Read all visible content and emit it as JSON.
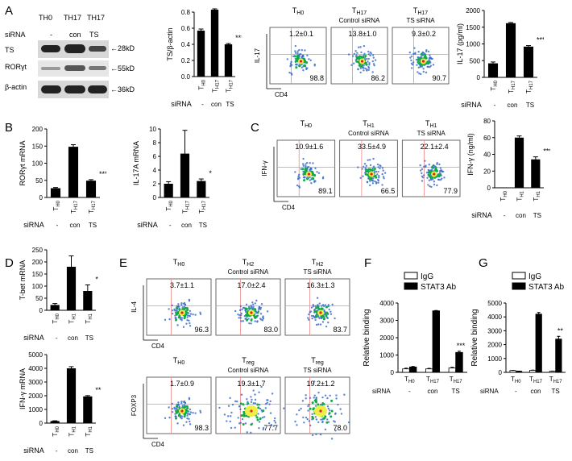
{
  "panels": {
    "A": "A",
    "B": "B",
    "C": "C",
    "D": "D",
    "E": "E",
    "F": "F",
    "G": "G"
  },
  "western": {
    "lanes": [
      "TH0",
      "TH17",
      "TH17"
    ],
    "sirna_label": "siRNA",
    "sirna": [
      "-",
      "con",
      "TS"
    ],
    "rows": [
      {
        "name": "TS",
        "size": "28kD"
      },
      {
        "name": "RORγt",
        "size": "55kD"
      },
      {
        "name": "β-actin",
        "size": "36kD"
      }
    ]
  },
  "common": {
    "siRNA_label": "siRNA",
    "siRNA_values": [
      "-",
      "con",
      "TS"
    ],
    "cat_th0": "TH0",
    "cat_th17": "TH17",
    "cat_th1": "TH1"
  },
  "chart_data": [
    {
      "id": "ts_actin",
      "type": "bar",
      "title": "",
      "ylabel": "TS/β-actin",
      "ylim": [
        0,
        0.8
      ],
      "yticks": [
        "0.0",
        "0.2",
        "0.4",
        "0.6",
        "0.8"
      ],
      "categories": [
        "TH0",
        "TH17",
        "TH17"
      ],
      "values": [
        0.57,
        0.83,
        0.4
      ],
      "errors": [
        0.02,
        0.01,
        0.01
      ],
      "annotation": "***"
    },
    {
      "id": "il17_protein",
      "type": "bar",
      "ylabel": "IL-17 (pg/ml)",
      "ylim": [
        0,
        2000
      ],
      "yticks": [
        "0",
        "500",
        "1000",
        "1500",
        "2000"
      ],
      "categories": [
        "TH0",
        "TH17",
        "TH17"
      ],
      "values": [
        420,
        1620,
        920
      ],
      "errors": [
        40,
        20,
        30
      ],
      "annotation": "***"
    },
    {
      "id": "rorgt_mrna",
      "type": "bar",
      "ylabel": "RORγt mRNA",
      "ylim": [
        0,
        200
      ],
      "yticks": [
        "0",
        "50",
        "100",
        "150",
        "200"
      ],
      "categories": [
        "TH0",
        "TH17",
        "TH17"
      ],
      "values": [
        27,
        148,
        49
      ],
      "errors": [
        2,
        6,
        3
      ],
      "annotation": "***"
    },
    {
      "id": "il17a_mrna",
      "type": "bar",
      "ylabel": "IL-17A mRNA",
      "ylim": [
        0,
        10
      ],
      "yticks": [
        "0",
        "2",
        "4",
        "6",
        "8",
        "10"
      ],
      "categories": [
        "TH0",
        "TH17",
        "TH17"
      ],
      "values": [
        2.0,
        6.4,
        2.4
      ],
      "errors": [
        0.3,
        3.4,
        0.3
      ],
      "annotation": "*"
    },
    {
      "id": "ifng_protein",
      "type": "bar",
      "ylabel": "IFN-γ (ng/ml)",
      "ylim": [
        0,
        80
      ],
      "yticks": [
        "0",
        "20",
        "40",
        "60",
        "80"
      ],
      "categories": [
        "TH0",
        "TH1",
        "TH1"
      ],
      "values": [
        0.5,
        60,
        34
      ],
      "errors": [
        0,
        2,
        3
      ],
      "annotation": "***"
    },
    {
      "id": "tbet_mrna",
      "type": "bar",
      "ylabel": "T-bet mRNA",
      "ylim": [
        0,
        250
      ],
      "yticks": [
        "0",
        "50",
        "100",
        "150",
        "200",
        "250"
      ],
      "categories": [
        "TH0",
        "TH1",
        "TH1"
      ],
      "values": [
        22,
        180,
        80
      ],
      "errors": [
        6,
        45,
        25
      ],
      "annotation": "*"
    },
    {
      "id": "ifng_mrna",
      "type": "bar",
      "ylabel": "IFN-γ mRNA",
      "ylim": [
        0,
        5000
      ],
      "yticks": [
        "0",
        "1000",
        "2000",
        "3000",
        "4000",
        "5000"
      ],
      "categories": [
        "TH0",
        "TH1",
        "TH1"
      ],
      "values": [
        150,
        4000,
        1950
      ],
      "errors": [
        20,
        120,
        60
      ],
      "annotation": "**"
    },
    {
      "id": "chip_F",
      "type": "bar",
      "ylabel": "Relative binding",
      "ylim": [
        0,
        4000
      ],
      "yticks": [
        "0",
        "1000",
        "2000",
        "3000",
        "4000"
      ],
      "categories": [
        "TH0",
        "TH17",
        "TH17"
      ],
      "legend": [
        "IgG",
        "STAT3 Ab"
      ],
      "series": [
        {
          "name": "IgG",
          "values": [
            200,
            200,
            250
          ],
          "errors": [
            40,
            30,
            40
          ]
        },
        {
          "name": "STAT3 Ab",
          "values": [
            310,
            3550,
            1150
          ],
          "errors": [
            30,
            20,
            70
          ]
        }
      ],
      "annotation": "***",
      "siRNA": [
        "-",
        "con",
        "TS"
      ]
    },
    {
      "id": "chip_G",
      "type": "bar",
      "ylabel": "Relative binding",
      "ylim": [
        0,
        5000
      ],
      "yticks": [
        "0",
        "1000",
        "2000",
        "3000",
        "4000",
        "5000"
      ],
      "categories": [
        "TH0",
        "TH17",
        "TH17"
      ],
      "legend": [
        "IgG",
        "STAT3 Ab"
      ],
      "series": [
        {
          "name": "IgG",
          "values": [
            130,
            150,
            80
          ],
          "errors": [
            10,
            10,
            10
          ]
        },
        {
          "name": "STAT3 Ab",
          "values": [
            80,
            4200,
            2400
          ],
          "errors": [
            10,
            120,
            200
          ]
        }
      ],
      "annotation": "**",
      "siRNA": [
        "-",
        "con",
        "TS"
      ]
    }
  ],
  "flow": {
    "A": {
      "ylabel": "IL-17",
      "xlabel": "CD4",
      "headers": [
        "TH0",
        "TH17",
        "TH17"
      ],
      "subheaders": [
        "",
        "Control siRNA",
        "TS siRNA"
      ],
      "top": [
        "1.2±0.1",
        "13.8±1.0",
        "9.3±0.2"
      ],
      "bottom": [
        "98.8",
        "86.2",
        "90.7"
      ]
    },
    "C": {
      "ylabel": "IFN-γ",
      "xlabel": "CD4",
      "headers": [
        "TH0",
        "TH1",
        "TH1"
      ],
      "subheaders": [
        "",
        "Control siRNA",
        "TS siRNA"
      ],
      "top": [
        "10.9±1.6",
        "33.5±4.9",
        "22.1±2.4"
      ],
      "bottom": [
        "89.1",
        "66.5",
        "77.9"
      ]
    },
    "E1": {
      "ylabel": "IL-4",
      "xlabel": "CD4",
      "headers": [
        "TH0",
        "TH2",
        "TH2"
      ],
      "subheaders": [
        "",
        "Control siRNA",
        "TS siRNA"
      ],
      "top": [
        "3.7±1.1",
        "17.0±2.4",
        "16.3±1.3"
      ],
      "bottom": [
        "96.3",
        "83.0",
        "83.7"
      ]
    },
    "E2": {
      "ylabel": "FOXP3",
      "xlabel": "CD4",
      "headers": [
        "TH0",
        "Treg",
        "Treg"
      ],
      "subheaders": [
        "",
        "Control siRNA",
        "TS siRNA"
      ],
      "top": [
        "1.7±0.9",
        "19.3±1.7",
        "19.2±1.2"
      ],
      "bottom": [
        "98.3",
        "77.7",
        "78.0"
      ]
    }
  },
  "colors": {
    "bar": "#000000",
    "igg": "#ffffff",
    "stat3": "#000000",
    "gate": "#e88",
    "dot_hi": "#1a4",
    "dot_lo": "#36c",
    "dot_core": "#ee4",
    "dot_red": "#d22"
  }
}
